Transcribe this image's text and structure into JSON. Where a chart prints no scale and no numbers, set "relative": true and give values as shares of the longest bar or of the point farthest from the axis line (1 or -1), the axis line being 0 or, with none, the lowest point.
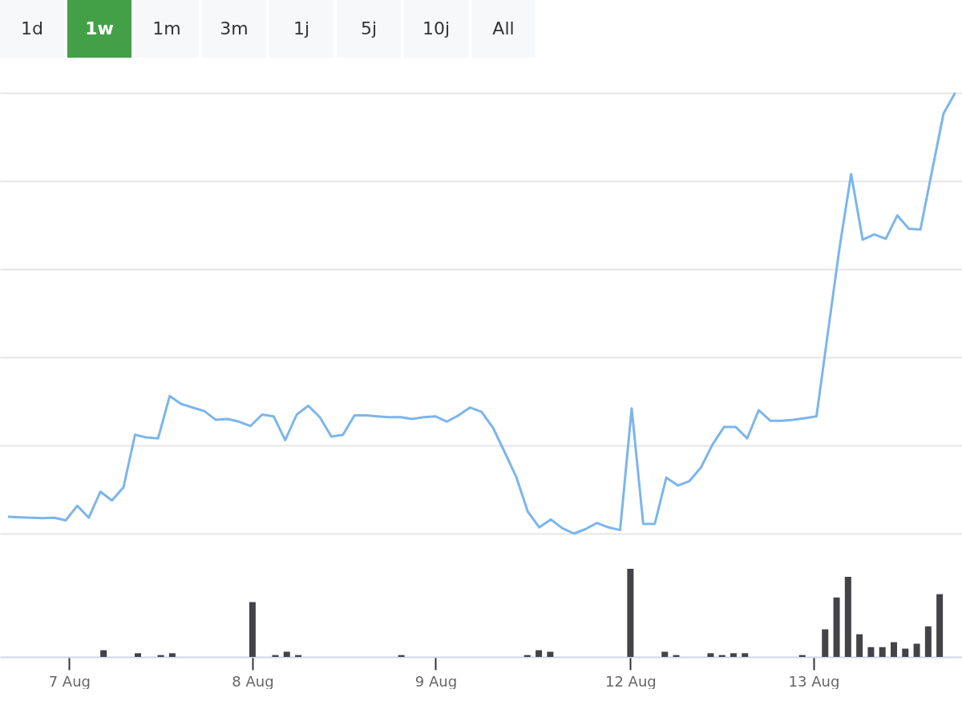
{
  "chart_data": [
    {
      "type": "line",
      "relative": true,
      "grid": "y",
      "tick_labels": false,
      "annotations": [
        "1d",
        "1w",
        "1m",
        "3m",
        "1j",
        "5j",
        "10j",
        "All"
      ],
      "categories": [
        null,
        null,
        null,
        null,
        null,
        null,
        null,
        null,
        null,
        null,
        null,
        null,
        null,
        null,
        null,
        null,
        null,
        null,
        null,
        null,
        null,
        null,
        null,
        null,
        null,
        null,
        null,
        null,
        null,
        null,
        null,
        null,
        null,
        null,
        null,
        null,
        null,
        null,
        null,
        null,
        null,
        null,
        null,
        null,
        null,
        null,
        null,
        null,
        null,
        null,
        null,
        null,
        null,
        null,
        null,
        null,
        null,
        null,
        null,
        null,
        null,
        null,
        null,
        null,
        null,
        null,
        null,
        null,
        null,
        null,
        null,
        null,
        null,
        null,
        null,
        null,
        null,
        null,
        null,
        null,
        null,
        null,
        null
      ],
      "series": [
        {
          "color": "#7cb5ec",
          "values": [
            0.038,
            0.037,
            0.036,
            0.035,
            0.036,
            0.03,
            0.063,
            0.036,
            0.095,
            0.075,
            0.105,
            0.224,
            0.218,
            0.216,
            0.312,
            0.294,
            0.286,
            0.278,
            0.258,
            0.26,
            0.254,
            0.244,
            0.27,
            0.266,
            0.212,
            0.27,
            0.29,
            0.264,
            0.22,
            0.224,
            0.268,
            0.268,
            0.266,
            0.264,
            0.264,
            0.26,
            0.264,
            0.266,
            0.254,
            0.268,
            0.286,
            0.276,
            0.24,
            0.185,
            0.129,
            0.05,
            0.014,
            0.032,
            0.012,
            0,
            0.01,
            0.024,
            0.014,
            0.008,
            0.284,
            0.022,
            0.022,
            0.127,
            0.109,
            0.119,
            0.15,
            0.202,
            0.242,
            0.242,
            0.216,
            0.28,
            0.256,
            0.256,
            0.258,
            0.262,
            0.266,
            0.458,
            0.649,
            0.816,
            0.667,
            0.679,
            0.669,
            0.722,
            0.692,
            0.69,
            0.822,
            0.953,
            1
          ]
        }
      ]
    },
    {
      "type": "bar",
      "relative": true,
      "tick_labels": "x",
      "categories": [
        null,
        null,
        null,
        null,
        null,
        "7 Aug",
        null,
        null,
        null,
        null,
        null,
        null,
        null,
        null,
        null,
        null,
        null,
        null,
        null,
        null,
        null,
        "8 Aug",
        null,
        null,
        null,
        null,
        null,
        null,
        null,
        null,
        null,
        null,
        null,
        null,
        null,
        null,
        null,
        "9 Aug",
        null,
        null,
        null,
        null,
        null,
        null,
        null,
        null,
        null,
        null,
        null,
        null,
        null,
        null,
        null,
        null,
        "12 Aug",
        null,
        null,
        null,
        null,
        null,
        null,
        null,
        null,
        null,
        null,
        null,
        null,
        null,
        null,
        null,
        "13 Aug",
        null,
        null,
        null,
        null,
        null,
        null,
        null,
        null,
        null,
        null,
        null,
        null
      ],
      "series": [
        {
          "color": "#434348",
          "values": [
            null,
            null,
            null,
            null,
            null,
            null,
            null,
            null,
            0.076,
            null,
            null,
            0.042,
            null,
            0.021,
            0.042,
            null,
            null,
            null,
            null,
            null,
            null,
            0.622,
            null,
            0.021,
            0.059,
            0.021,
            null,
            null,
            null,
            null,
            null,
            null,
            null,
            null,
            0.021,
            null,
            null,
            null,
            null,
            null,
            null,
            null,
            null,
            null,
            null,
            0.021,
            0.076,
            0.059,
            null,
            null,
            null,
            null,
            null,
            null,
            1,
            null,
            null,
            0.059,
            0.021,
            null,
            null,
            0.042,
            0.021,
            0.042,
            0.042,
            null,
            null,
            null,
            null,
            0.021,
            null,
            0.313,
            0.674,
            0.91,
            0.257,
            0.111,
            0.111,
            0.167,
            0.094,
            0.15,
            0.347,
            0.712,
            null
          ]
        }
      ]
    }
  ]
}
